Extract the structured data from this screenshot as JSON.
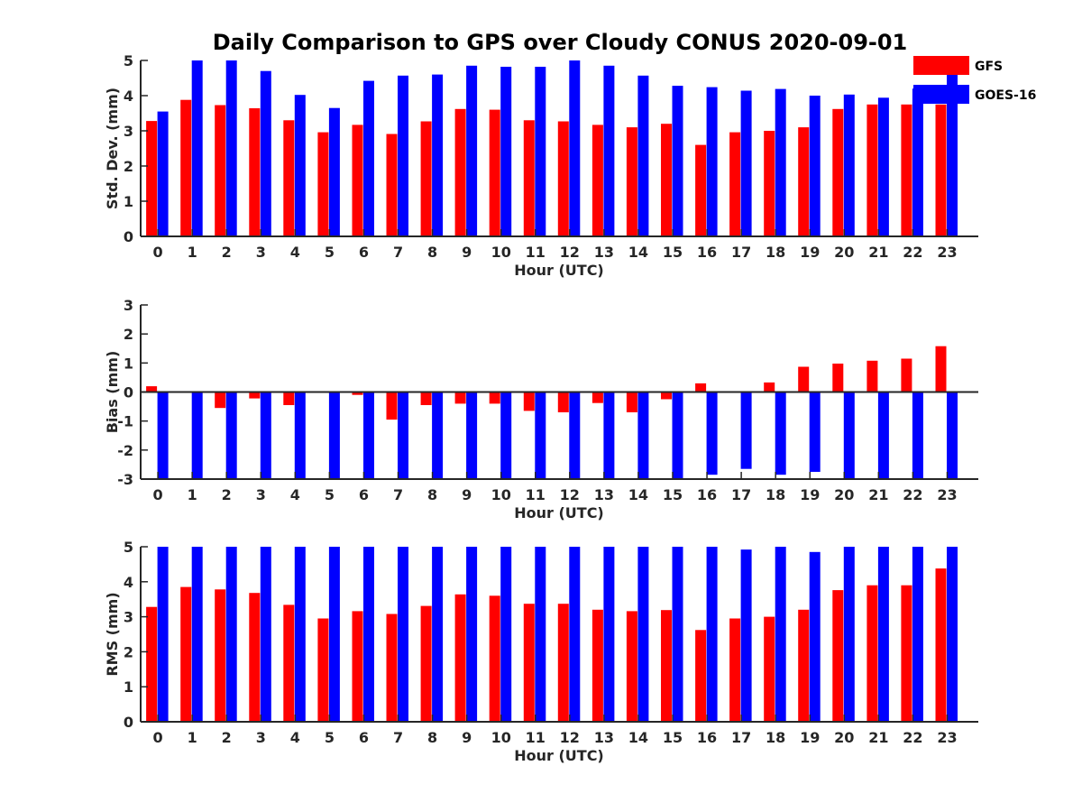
{
  "title": "Daily Comparison to GPS over Cloudy CONUS 2020-09-01",
  "colors": {
    "GFS": "#ff0000",
    "GOES-16": "#0000ff",
    "axis": "#262626"
  },
  "chart_data": [
    {
      "type": "bar",
      "xlabel": "Hour (UTC)",
      "ylabel": "Std. Dev. (mm)",
      "ylim": [
        0,
        5
      ],
      "yticks": [
        "0",
        "1",
        "2",
        "3",
        "4",
        "5"
      ],
      "categories": [
        "0",
        "1",
        "2",
        "3",
        "4",
        "5",
        "6",
        "7",
        "8",
        "9",
        "10",
        "11",
        "12",
        "13",
        "14",
        "15",
        "16",
        "17",
        "18",
        "19",
        "20",
        "21",
        "22",
        "23"
      ],
      "legend": {
        "placement": "top-right",
        "entries": [
          "GFS",
          "GOES-16"
        ]
      },
      "series": [
        {
          "name": "GFS",
          "values": [
            3.28,
            3.88,
            3.73,
            3.64,
            3.3,
            2.96,
            3.17,
            2.91,
            3.27,
            3.62,
            3.6,
            3.3,
            3.27,
            3.17,
            3.1,
            3.2,
            2.6,
            2.96,
            3.0,
            3.1,
            3.62,
            3.75,
            3.75,
            3.75
          ]
        },
        {
          "name": "GOES-16",
          "values": [
            3.55,
            5.0,
            5.0,
            4.7,
            4.02,
            3.65,
            4.42,
            4.57,
            4.6,
            4.85,
            4.82,
            4.82,
            5.0,
            4.85,
            4.57,
            4.28,
            4.24,
            4.14,
            4.19,
            4.0,
            4.03,
            3.94,
            4.2,
            4.6
          ]
        }
      ]
    },
    {
      "type": "bar",
      "xlabel": "Hour (UTC)",
      "ylabel": "Bias (mm)",
      "ylim": [
        -3,
        3
      ],
      "yticks": [
        "-3",
        "-2",
        "-1",
        "0",
        "1",
        "2",
        "3"
      ],
      "categories": [
        "0",
        "1",
        "2",
        "3",
        "4",
        "5",
        "6",
        "7",
        "8",
        "9",
        "10",
        "11",
        "12",
        "13",
        "14",
        "15",
        "16",
        "17",
        "18",
        "19",
        "20",
        "21",
        "22",
        "23"
      ],
      "series": [
        {
          "name": "GFS",
          "values": [
            0.2,
            0.0,
            -0.55,
            -0.22,
            -0.45,
            0.0,
            -0.1,
            -0.95,
            -0.45,
            -0.4,
            -0.4,
            -0.65,
            -0.7,
            -0.38,
            -0.7,
            -0.25,
            0.3,
            0.02,
            0.33,
            0.87,
            0.98,
            1.08,
            1.15,
            1.58
          ]
        },
        {
          "name": "GOES-16",
          "values": [
            -3.0,
            -3.0,
            -3.0,
            -3.0,
            -3.0,
            -3.0,
            -3.0,
            -3.0,
            -3.0,
            -3.0,
            -3.0,
            -3.0,
            -3.0,
            -3.0,
            -3.0,
            -3.0,
            -2.85,
            -2.65,
            -2.85,
            -2.75,
            -3.0,
            -3.0,
            -3.0,
            -3.0
          ]
        }
      ]
    },
    {
      "type": "bar",
      "xlabel": "Hour (UTC)",
      "ylabel": "RMS (mm)",
      "ylim": [
        0,
        5
      ],
      "yticks": [
        "0",
        "1",
        "2",
        "3",
        "4",
        "5"
      ],
      "categories": [
        "0",
        "1",
        "2",
        "3",
        "4",
        "5",
        "6",
        "7",
        "8",
        "9",
        "10",
        "11",
        "12",
        "13",
        "14",
        "15",
        "16",
        "17",
        "18",
        "19",
        "20",
        "21",
        "22",
        "23"
      ],
      "series": [
        {
          "name": "GFS",
          "values": [
            3.28,
            3.85,
            3.78,
            3.68,
            3.34,
            2.95,
            3.16,
            3.08,
            3.31,
            3.64,
            3.6,
            3.37,
            3.37,
            3.2,
            3.16,
            3.19,
            2.62,
            2.95,
            3.0,
            3.2,
            3.76,
            3.9,
            3.9,
            4.38
          ]
        },
        {
          "name": "GOES-16",
          "values": [
            5.0,
            5.0,
            5.0,
            5.0,
            5.0,
            5.0,
            5.0,
            5.0,
            5.0,
            5.0,
            5.0,
            5.0,
            5.0,
            5.0,
            5.0,
            5.0,
            5.0,
            4.92,
            5.0,
            4.85,
            5.0,
            5.0,
            5.0,
            5.0
          ]
        }
      ]
    }
  ]
}
